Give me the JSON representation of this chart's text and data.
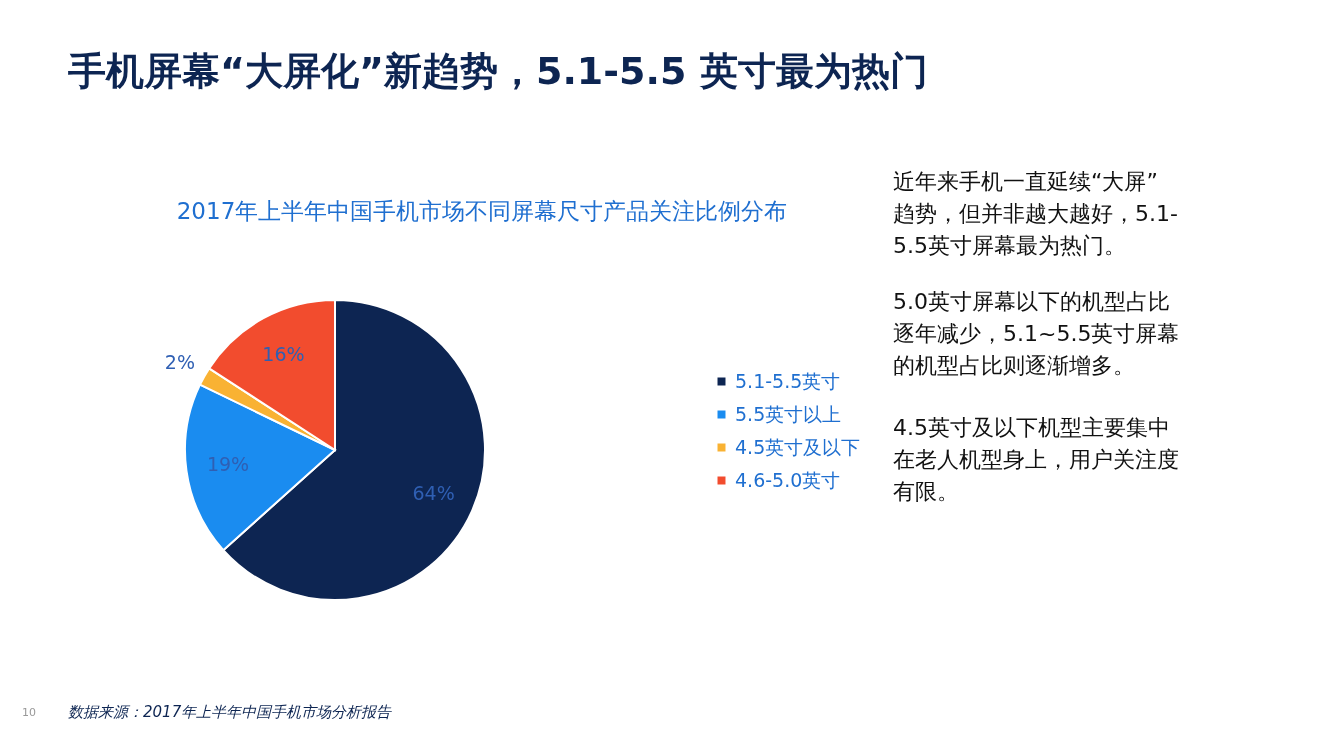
{
  "chart_data": {
    "type": "pie",
    "title": "手机屏幕“大屏化”新趋势，5.1-5.5 英寸最为热门",
    "subtitle": "2017年上半年中国手机市场不同屏幕尺寸产品关注比例分布",
    "categories": [
      "5.1-5.5英寸",
      "5.5英寸以上",
      "4.5英寸及以下",
      "4.6-5.0英寸"
    ],
    "values": [
      64,
      19,
      2,
      16
    ],
    "value_labels": [
      "64%",
      "19%",
      "2%",
      "16%"
    ],
    "colors": [
      "#0d2552",
      "#1a8cf0",
      "#f9b233",
      "#f24c2e"
    ],
    "legend": "right",
    "annotations": [
      "近年来手机一直延续“大屏”趋势，但并非越大越好，5.1-5.5英寸屏幕最为热门。",
      "5.0英寸屏幕以下的机型占比逐年减少，5.1~5.5英寸屏幕的机型占比则逐渐增多。",
      "4.5英寸及以下机型主要集中在老人机型身上，用户关注度有限。",
      "数据来源：2017年上半年中国手机市场分析报告",
      "10"
    ]
  }
}
